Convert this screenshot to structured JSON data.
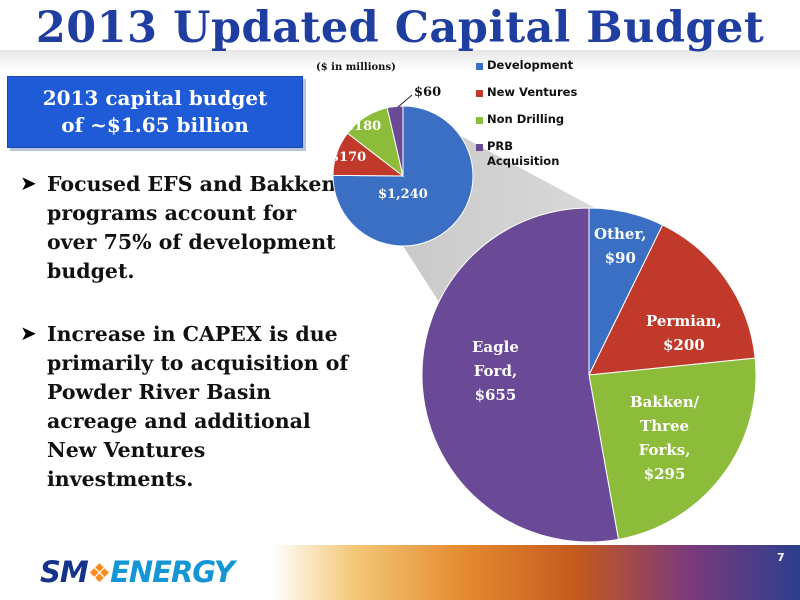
{
  "slide": {
    "title": "2013 Updated Capital Budget",
    "page_number": "7"
  },
  "callout": {
    "line1": "2013 capital budget",
    "line2": "of ~$1.65 billion"
  },
  "bullets": [
    "Focused EFS and Bakken programs account for over 75% of development budget.",
    "Increase in CAPEX is due primarily to acquisition of Powder River Basin acreage and additional New Ventures investments."
  ],
  "logo": {
    "part1": "SM",
    "part2": "ENERGY"
  },
  "chart_data": [
    {
      "type": "pie",
      "units_note": "($ in millions)",
      "categories": [
        "Development",
        "New Ventures",
        "Non Drilling",
        "PRB Acquisition"
      ],
      "values": [
        1240,
        170,
        180,
        60
      ],
      "value_labels": [
        "$1,240",
        "$170",
        "$180",
        "$60"
      ],
      "colors": [
        "#3a6fc4",
        "#c0392b",
        "#8dbb3a",
        "#6a4a96"
      ],
      "legend_placement": "right"
    },
    {
      "type": "pie",
      "categories": [
        "Other",
        "Permian",
        "Bakken/ Three Forks",
        "Eagle Ford"
      ],
      "values": [
        90,
        200,
        295,
        655
      ],
      "label_lines": [
        [
          "Other,",
          "$90"
        ],
        [
          "Permian,",
          "$200"
        ],
        [
          "Bakken/",
          "Three",
          "Forks,",
          "$295"
        ],
        [
          "Eagle",
          "Ford,",
          "$655"
        ]
      ],
      "colors": [
        "#3a6fc4",
        "#c0392b",
        "#8dbb3a",
        "#6a4a96"
      ]
    }
  ]
}
